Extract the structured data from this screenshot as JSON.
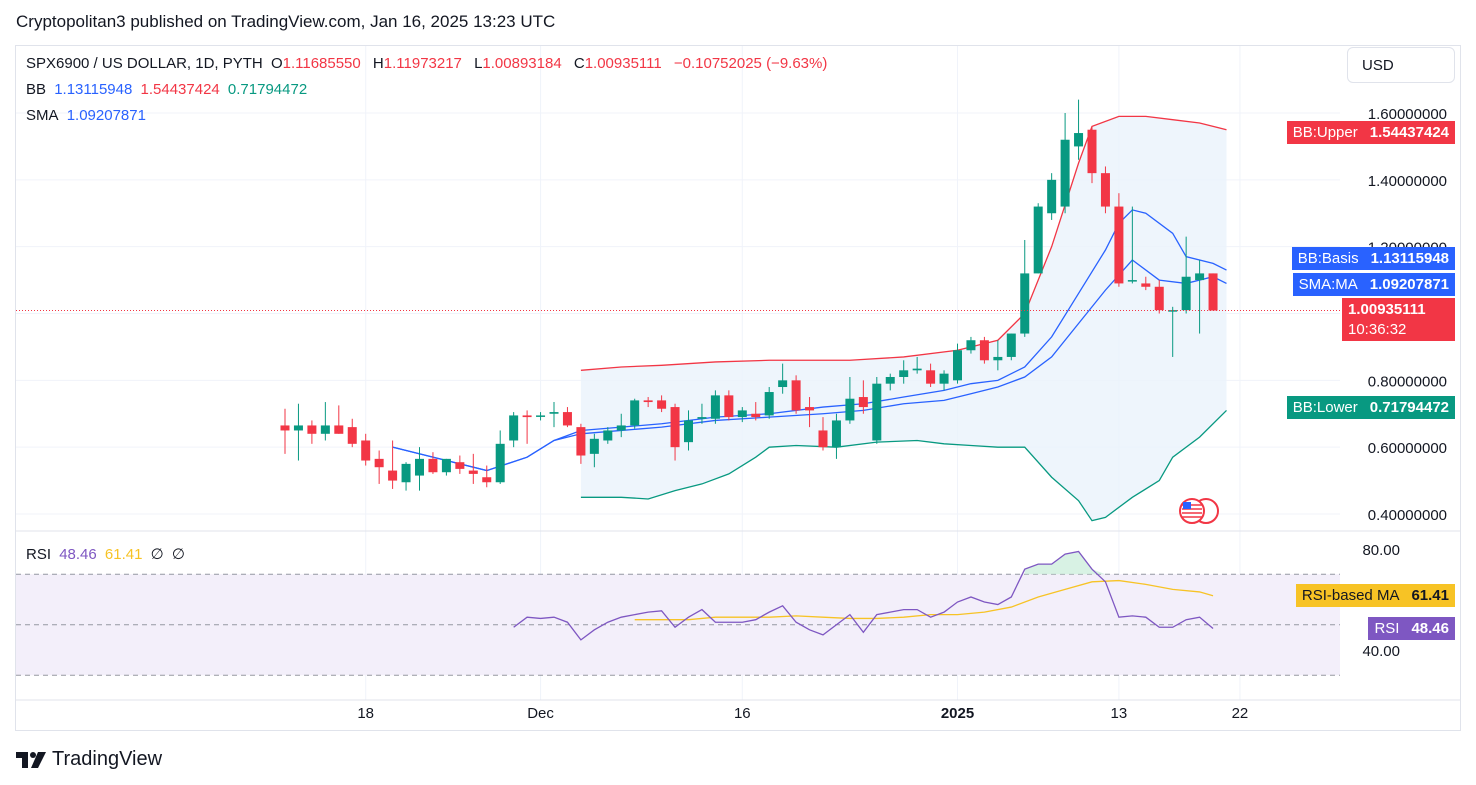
{
  "header": {
    "publisher_line": "Cryptopolitan3 published on TradingView.com, Jan 16, 2025 13:23 UTC"
  },
  "legend": {
    "symbol": "SPX6900 / US DOLLAR, 1D, PYTH",
    "o_label": "O",
    "o_value": "1.11685550",
    "h_label": "H",
    "h_value": "1.11973217",
    "l_label": "L",
    "l_value": "1.00893184",
    "c_label": "C",
    "c_value": "1.00935111",
    "change": "−0.10752025 (−9.63%)",
    "bb_label": "BB",
    "bb_basis": "1.13115948",
    "bb_upper": "1.54437424",
    "bb_lower": "0.71794472",
    "sma_label": "SMA",
    "sma_value": "1.09207871",
    "rsi_label": "RSI",
    "rsi_value": "48.46",
    "rsi_ma_value": "61.41",
    "rsi_extra1": "∅",
    "rsi_extra2": "∅"
  },
  "currency": "USD",
  "price_axis_ticks": [
    "1.60000000",
    "1.40000000",
    "1.20000000",
    "0.80000000",
    "0.60000000",
    "0.40000000"
  ],
  "rsi_axis_ticks": [
    "80.00",
    "40.00"
  ],
  "time_axis": [
    "18",
    "Dec",
    "16",
    "2025",
    "13",
    "22"
  ],
  "price_labels": {
    "bb_upper_name": "BB:Upper",
    "bb_upper_value": "1.54437424",
    "bb_basis_name": "BB:Basis",
    "bb_basis_value": "1.13115948",
    "sma_name": "SMA:MA",
    "sma_value": "1.09207871",
    "last_value": "1.00935111",
    "countdown": "10:36:32",
    "bb_lower_name": "BB:Lower",
    "bb_lower_value": "0.71794472",
    "rsi_ma_name": "RSI-based MA",
    "rsi_ma_value": "61.41",
    "rsi_name": "RSI",
    "rsi_value": "48.46"
  },
  "colors": {
    "up": "#089981",
    "down": "#f23645",
    "bb_basis": "#2962ff",
    "bb_upper": "#f23645",
    "bb_lower": "#089981",
    "sma": "#2962ff",
    "rsi": "#7e57c2",
    "rsi_ma": "#f7c325",
    "bb_fill": "#eaf3fb",
    "rsi_band": "#f3effa"
  },
  "footer": {
    "brand": "TradingView"
  },
  "chart_data": {
    "type": "candlestick",
    "ylim": [
      0.4,
      1.6
    ],
    "rsi_ylim": [
      40,
      80
    ],
    "candles": [
      {
        "d": "2024-11-12",
        "o": 0.665,
        "h": 0.715,
        "l": 0.58,
        "c": 0.65
      },
      {
        "d": "2024-11-13",
        "o": 0.65,
        "h": 0.73,
        "l": 0.56,
        "c": 0.665
      },
      {
        "d": "2024-11-14",
        "o": 0.665,
        "h": 0.68,
        "l": 0.61,
        "c": 0.64
      },
      {
        "d": "2024-11-15",
        "o": 0.64,
        "h": 0.735,
        "l": 0.62,
        "c": 0.665
      },
      {
        "d": "2024-11-16",
        "o": 0.665,
        "h": 0.725,
        "l": 0.64,
        "c": 0.64
      },
      {
        "d": "2024-11-17",
        "o": 0.66,
        "h": 0.685,
        "l": 0.6,
        "c": 0.61
      },
      {
        "d": "2024-11-18",
        "o": 0.62,
        "h": 0.64,
        "l": 0.545,
        "c": 0.56
      },
      {
        "d": "2024-11-19",
        "o": 0.565,
        "h": 0.59,
        "l": 0.49,
        "c": 0.54
      },
      {
        "d": "2024-11-20",
        "o": 0.53,
        "h": 0.62,
        "l": 0.475,
        "c": 0.5
      },
      {
        "d": "2024-11-21",
        "o": 0.495,
        "h": 0.555,
        "l": 0.47,
        "c": 0.55
      },
      {
        "d": "2024-11-22",
        "o": 0.515,
        "h": 0.6,
        "l": 0.47,
        "c": 0.565
      },
      {
        "d": "2024-11-23",
        "o": 0.565,
        "h": 0.585,
        "l": 0.52,
        "c": 0.525
      },
      {
        "d": "2024-11-24",
        "o": 0.525,
        "h": 0.565,
        "l": 0.515,
        "c": 0.565
      },
      {
        "d": "2024-11-25",
        "o": 0.555,
        "h": 0.575,
        "l": 0.52,
        "c": 0.535
      },
      {
        "d": "2024-11-26",
        "o": 0.53,
        "h": 0.58,
        "l": 0.49,
        "c": 0.52
      },
      {
        "d": "2024-11-27",
        "o": 0.51,
        "h": 0.545,
        "l": 0.48,
        "c": 0.495
      },
      {
        "d": "2024-11-28",
        "o": 0.495,
        "h": 0.65,
        "l": 0.49,
        "c": 0.61
      },
      {
        "d": "2024-11-29",
        "o": 0.62,
        "h": 0.705,
        "l": 0.6,
        "c": 0.695
      },
      {
        "d": "2024-11-30",
        "o": 0.695,
        "h": 0.71,
        "l": 0.61,
        "c": 0.69
      },
      {
        "d": "2024-12-01",
        "o": 0.695,
        "h": 0.705,
        "l": 0.68,
        "c": 0.695
      },
      {
        "d": "2024-12-02",
        "o": 0.7,
        "h": 0.735,
        "l": 0.66,
        "c": 0.705
      },
      {
        "d": "2024-12-03",
        "o": 0.705,
        "h": 0.72,
        "l": 0.66,
        "c": 0.665
      },
      {
        "d": "2024-12-04",
        "o": 0.66,
        "h": 0.67,
        "l": 0.55,
        "c": 0.575
      },
      {
        "d": "2024-12-05",
        "o": 0.58,
        "h": 0.64,
        "l": 0.54,
        "c": 0.625
      },
      {
        "d": "2024-12-06",
        "o": 0.62,
        "h": 0.66,
        "l": 0.61,
        "c": 0.65
      },
      {
        "d": "2024-12-07",
        "o": 0.65,
        "h": 0.7,
        "l": 0.63,
        "c": 0.665
      },
      {
        "d": "2024-12-08",
        "o": 0.665,
        "h": 0.745,
        "l": 0.655,
        "c": 0.74
      },
      {
        "d": "2024-12-09",
        "o": 0.74,
        "h": 0.75,
        "l": 0.72,
        "c": 0.735
      },
      {
        "d": "2024-12-10",
        "o": 0.74,
        "h": 0.755,
        "l": 0.705,
        "c": 0.715
      },
      {
        "d": "2024-12-11",
        "o": 0.72,
        "h": 0.73,
        "l": 0.56,
        "c": 0.6
      },
      {
        "d": "2024-12-12",
        "o": 0.615,
        "h": 0.71,
        "l": 0.59,
        "c": 0.68
      },
      {
        "d": "2024-12-13",
        "o": 0.685,
        "h": 0.73,
        "l": 0.67,
        "c": 0.69
      },
      {
        "d": "2024-12-14",
        "o": 0.685,
        "h": 0.77,
        "l": 0.67,
        "c": 0.755
      },
      {
        "d": "2024-12-15",
        "o": 0.755,
        "h": 0.77,
        "l": 0.68,
        "c": 0.69
      },
      {
        "d": "2024-12-16",
        "o": 0.69,
        "h": 0.72,
        "l": 0.675,
        "c": 0.71
      },
      {
        "d": "2024-12-17",
        "o": 0.7,
        "h": 0.735,
        "l": 0.68,
        "c": 0.69
      },
      {
        "d": "2024-12-18",
        "o": 0.695,
        "h": 0.78,
        "l": 0.685,
        "c": 0.765
      },
      {
        "d": "2024-12-19",
        "o": 0.78,
        "h": 0.85,
        "l": 0.76,
        "c": 0.8
      },
      {
        "d": "2024-12-20",
        "o": 0.8,
        "h": 0.815,
        "l": 0.7,
        "c": 0.71
      },
      {
        "d": "2024-12-21",
        "o": 0.72,
        "h": 0.75,
        "l": 0.66,
        "c": 0.71
      },
      {
        "d": "2024-12-22",
        "o": 0.65,
        "h": 0.69,
        "l": 0.59,
        "c": 0.6
      },
      {
        "d": "2024-12-23",
        "o": 0.6,
        "h": 0.7,
        "l": 0.565,
        "c": 0.68
      },
      {
        "d": "2024-12-24",
        "o": 0.68,
        "h": 0.81,
        "l": 0.67,
        "c": 0.745
      },
      {
        "d": "2024-12-25",
        "o": 0.75,
        "h": 0.8,
        "l": 0.7,
        "c": 0.72
      },
      {
        "d": "2024-12-26",
        "o": 0.62,
        "h": 0.81,
        "l": 0.61,
        "c": 0.79
      },
      {
        "d": "2024-12-27",
        "o": 0.79,
        "h": 0.82,
        "l": 0.77,
        "c": 0.81
      },
      {
        "d": "2024-12-28",
        "o": 0.81,
        "h": 0.86,
        "l": 0.79,
        "c": 0.83
      },
      {
        "d": "2024-12-29",
        "o": 0.83,
        "h": 0.87,
        "l": 0.82,
        "c": 0.835
      },
      {
        "d": "2024-12-30",
        "o": 0.83,
        "h": 0.85,
        "l": 0.78,
        "c": 0.79
      },
      {
        "d": "2024-12-31",
        "o": 0.79,
        "h": 0.83,
        "l": 0.77,
        "c": 0.82
      },
      {
        "d": "2025-01-01",
        "o": 0.8,
        "h": 0.91,
        "l": 0.79,
        "c": 0.89
      },
      {
        "d": "2025-01-02",
        "o": 0.89,
        "h": 0.93,
        "l": 0.88,
        "c": 0.92
      },
      {
        "d": "2025-01-03",
        "o": 0.92,
        "h": 0.93,
        "l": 0.85,
        "c": 0.86
      },
      {
        "d": "2025-01-04",
        "o": 0.86,
        "h": 0.92,
        "l": 0.83,
        "c": 0.87
      },
      {
        "d": "2025-01-05",
        "o": 0.87,
        "h": 0.94,
        "l": 0.86,
        "c": 0.94
      },
      {
        "d": "2025-01-06",
        "o": 0.94,
        "h": 1.22,
        "l": 0.93,
        "c": 1.12
      },
      {
        "d": "2025-01-07",
        "o": 1.12,
        "h": 1.33,
        "l": 1.12,
        "c": 1.32
      },
      {
        "d": "2025-01-08",
        "o": 1.3,
        "h": 1.42,
        "l": 1.28,
        "c": 1.4
      },
      {
        "d": "2025-01-09",
        "o": 1.32,
        "h": 1.6,
        "l": 1.3,
        "c": 1.52
      },
      {
        "d": "2025-01-10",
        "o": 1.5,
        "h": 1.64,
        "l": 1.46,
        "c": 1.54
      },
      {
        "d": "2025-01-11",
        "o": 1.55,
        "h": 1.56,
        "l": 1.39,
        "c": 1.42
      },
      {
        "d": "2025-01-12",
        "o": 1.42,
        "h": 1.44,
        "l": 1.3,
        "c": 1.32
      },
      {
        "d": "2025-01-13",
        "o": 1.32,
        "h": 1.36,
        "l": 1.08,
        "c": 1.09
      },
      {
        "d": "2025-01-14",
        "o": 1.1,
        "h": 1.32,
        "l": 1.09,
        "c": 1.1
      },
      {
        "d": "2025-01-15",
        "o": 1.09,
        "h": 1.11,
        "l": 1.07,
        "c": 1.08
      },
      {
        "d": "2025-01-16",
        "o": 1.08,
        "h": 1.1,
        "l": 1.0,
        "c": 1.01
      },
      {
        "d": "2025-01-17",
        "o": 1.01,
        "h": 1.02,
        "l": 0.87,
        "c": 1.01
      },
      {
        "d": "2025-01-18",
        "o": 1.01,
        "h": 1.23,
        "l": 1.0,
        "c": 1.11
      },
      {
        "d": "2025-01-19",
        "o": 1.1,
        "h": 1.16,
        "l": 0.94,
        "c": 1.12
      },
      {
        "d": "2025-01-20",
        "o": 1.12,
        "h": 1.12,
        "l": 1.01,
        "c": 1.009
      }
    ],
    "bb_upper": [
      [
        22,
        0.83
      ],
      [
        25,
        0.84
      ],
      [
        28,
        0.845
      ],
      [
        32,
        0.855
      ],
      [
        36,
        0.86
      ],
      [
        38,
        0.86
      ],
      [
        42,
        0.86
      ],
      [
        46,
        0.87
      ],
      [
        50,
        0.89
      ],
      [
        53,
        0.92
      ],
      [
        55,
        1.0
      ],
      [
        57,
        1.2
      ],
      [
        59,
        1.45
      ],
      [
        60,
        1.56
      ],
      [
        62,
        1.59
      ],
      [
        64,
        1.59
      ],
      [
        66,
        1.58
      ],
      [
        68,
        1.57
      ],
      [
        70,
        1.55
      ]
    ],
    "bb_basis": [
      [
        8,
        0.6
      ],
      [
        12,
        0.56
      ],
      [
        15,
        0.53
      ],
      [
        18,
        0.57
      ],
      [
        20,
        0.62
      ],
      [
        22,
        0.65
      ],
      [
        25,
        0.66
      ],
      [
        28,
        0.67
      ],
      [
        32,
        0.69
      ],
      [
        36,
        0.7
      ],
      [
        40,
        0.72
      ],
      [
        43,
        0.73
      ],
      [
        46,
        0.75
      ],
      [
        49,
        0.77
      ],
      [
        51,
        0.79
      ],
      [
        53,
        0.8
      ],
      [
        55,
        0.84
      ],
      [
        57,
        0.93
      ],
      [
        59,
        1.06
      ],
      [
        61,
        1.19
      ],
      [
        62,
        1.27
      ],
      [
        63,
        1.31
      ],
      [
        64,
        1.3
      ],
      [
        66,
        1.24
      ],
      [
        67,
        1.17
      ],
      [
        69,
        1.15
      ],
      [
        70,
        1.13
      ]
    ],
    "bb_lower": [
      [
        22,
        0.45
      ],
      [
        25,
        0.45
      ],
      [
        27,
        0.445
      ],
      [
        29,
        0.47
      ],
      [
        31,
        0.49
      ],
      [
        33,
        0.52
      ],
      [
        35,
        0.57
      ],
      [
        36,
        0.6
      ],
      [
        38,
        0.605
      ],
      [
        41,
        0.6
      ],
      [
        44,
        0.615
      ],
      [
        47,
        0.62
      ],
      [
        49,
        0.61
      ],
      [
        51,
        0.605
      ],
      [
        53,
        0.6
      ],
      [
        55,
        0.6
      ],
      [
        57,
        0.51
      ],
      [
        59,
        0.44
      ],
      [
        60,
        0.38
      ],
      [
        61,
        0.39
      ],
      [
        63,
        0.45
      ],
      [
        65,
        0.5
      ],
      [
        66,
        0.57
      ],
      [
        68,
        0.63
      ],
      [
        70,
        0.71
      ]
    ],
    "sma": [
      [
        8,
        0.6
      ],
      [
        12,
        0.56
      ],
      [
        15,
        0.53
      ],
      [
        18,
        0.57
      ],
      [
        20,
        0.62
      ],
      [
        22,
        0.64
      ],
      [
        25,
        0.65
      ],
      [
        28,
        0.66
      ],
      [
        32,
        0.68
      ],
      [
        36,
        0.69
      ],
      [
        40,
        0.7
      ],
      [
        43,
        0.71
      ],
      [
        46,
        0.73
      ],
      [
        49,
        0.74
      ],
      [
        51,
        0.76
      ],
      [
        53,
        0.78
      ],
      [
        55,
        0.81
      ],
      [
        57,
        0.87
      ],
      [
        59,
        0.97
      ],
      [
        61,
        1.07
      ],
      [
        63,
        1.16
      ],
      [
        65,
        1.1
      ],
      [
        67,
        1.09
      ],
      [
        69,
        1.11
      ],
      [
        70,
        1.09
      ]
    ],
    "rsi": [
      [
        17,
        49
      ],
      [
        18,
        53
      ],
      [
        19,
        52.5
      ],
      [
        20,
        53
      ],
      [
        21,
        51
      ],
      [
        22,
        44
      ],
      [
        23,
        48
      ],
      [
        24,
        51
      ],
      [
        25,
        53
      ],
      [
        26,
        54
      ],
      [
        27,
        55
      ],
      [
        28,
        55.5
      ],
      [
        29,
        49
      ],
      [
        30,
        53
      ],
      [
        31,
        56
      ],
      [
        32,
        51
      ],
      [
        33,
        51
      ],
      [
        34,
        51
      ],
      [
        35,
        52
      ],
      [
        36,
        55
      ],
      [
        37,
        57.5
      ],
      [
        38,
        51
      ],
      [
        39,
        48
      ],
      [
        40,
        46
      ],
      [
        41,
        50
      ],
      [
        42,
        54
      ],
      [
        43,
        47
      ],
      [
        44,
        54
      ],
      [
        45,
        55
      ],
      [
        46,
        56
      ],
      [
        47,
        56
      ],
      [
        48,
        53
      ],
      [
        49,
        55
      ],
      [
        50,
        59
      ],
      [
        51,
        61
      ],
      [
        52,
        59
      ],
      [
        53,
        58
      ],
      [
        54,
        61
      ],
      [
        55,
        72
      ],
      [
        56,
        74
      ],
      [
        57,
        74
      ],
      [
        58,
        78
      ],
      [
        59,
        79
      ],
      [
        60,
        72
      ],
      [
        61,
        67
      ],
      [
        62,
        53
      ],
      [
        63,
        53.5
      ],
      [
        64,
        53
      ],
      [
        65,
        49
      ],
      [
        66,
        49
      ],
      [
        67,
        52
      ],
      [
        68,
        53
      ],
      [
        69,
        48.5
      ]
    ],
    "rsi_ma": [
      [
        26,
        52
      ],
      [
        28,
        52
      ],
      [
        30,
        52
      ],
      [
        32,
        53
      ],
      [
        34,
        53
      ],
      [
        36,
        53
      ],
      [
        38,
        53.5
      ],
      [
        40,
        53
      ],
      [
        42,
        52.5
      ],
      [
        44,
        52.5
      ],
      [
        46,
        53
      ],
      [
        48,
        54
      ],
      [
        50,
        54
      ],
      [
        52,
        55
      ],
      [
        54,
        57
      ],
      [
        56,
        61
      ],
      [
        58,
        64
      ],
      [
        60,
        67
      ],
      [
        62,
        67.5
      ],
      [
        64,
        66
      ],
      [
        66,
        64
      ],
      [
        68,
        63
      ],
      [
        69,
        61.5
      ]
    ]
  }
}
